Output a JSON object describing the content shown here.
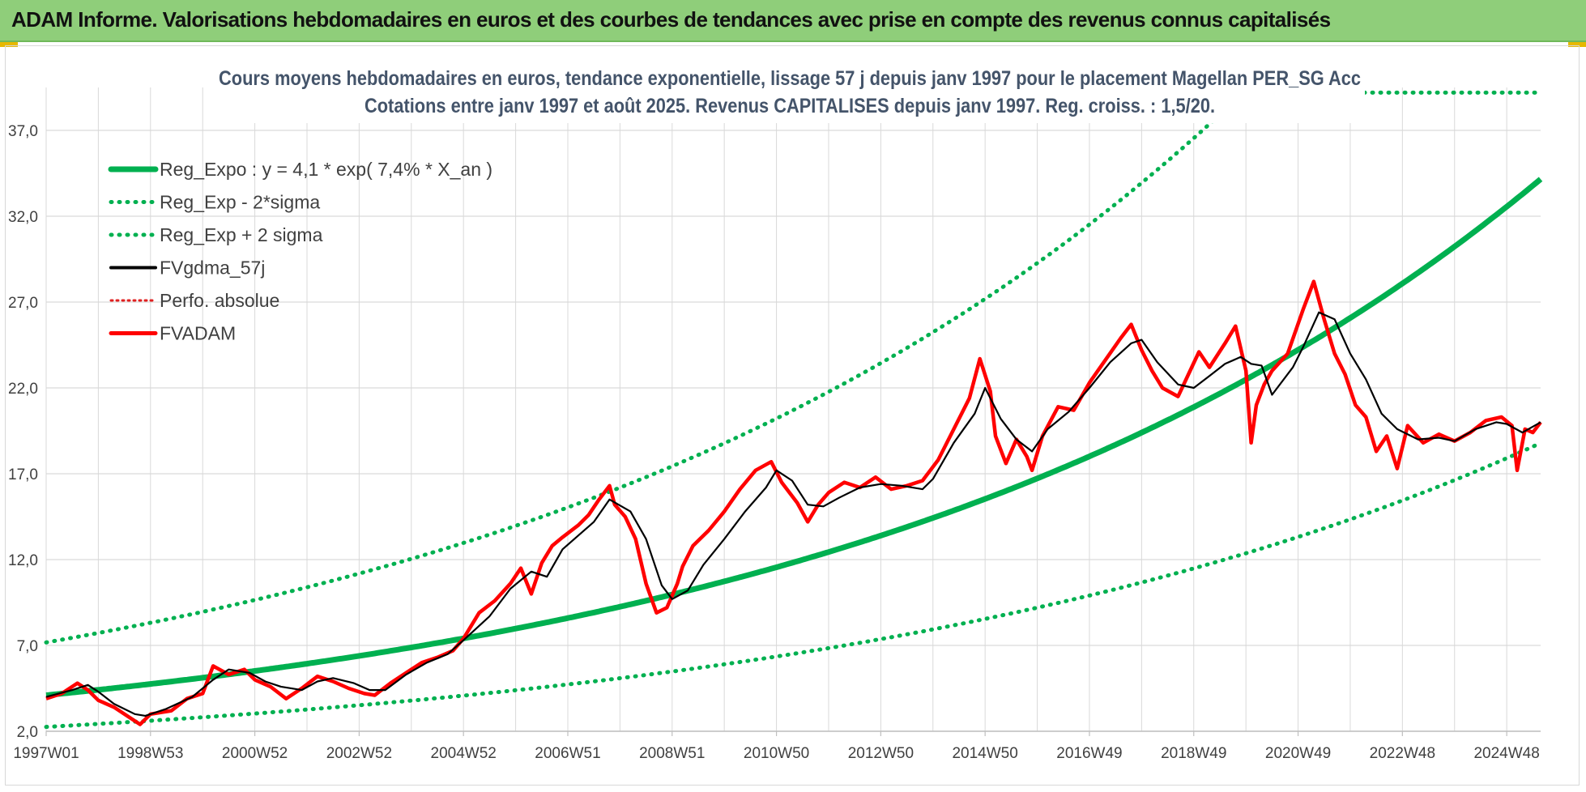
{
  "banner": {
    "title": "ADAM Informe. Valorisations hebdomadaires en euros et des courbes de tendances avec prise en compte des revenus connus capitalisés"
  },
  "colors": {
    "banner_bg": "#8fce7a",
    "regression": "#00b050",
    "fvgdma": "#000000",
    "fvadam": "#ff0000",
    "perfo": "#e02020",
    "grid": "#d9d9d9"
  },
  "chart_data": {
    "type": "line",
    "title": "Cours moyens hebdomadaires en euros, tendance exponentielle, lissage 57 j depuis janv 1997 pour le placement Magellan PER_SG Acc",
    "subtitle": "Cotations entre janv 1997 et août 2025. Revenus CAPITALISES depuis janv 1997. Reg. croiss. : 1,5/20.",
    "xlabel": "",
    "ylabel": "",
    "x_range": [
      1997.0,
      2025.65
    ],
    "ylim": [
      2.0,
      39.5
    ],
    "yticks": [
      "2,0",
      "7,0",
      "12,0",
      "17,0",
      "22,0",
      "27,0",
      "32,0",
      "37,0"
    ],
    "xticks": [
      {
        "label": "1997W01",
        "t": 1997.0
      },
      {
        "label": "1998W53",
        "t": 1999.0
      },
      {
        "label": "2000W52",
        "t": 2001.0
      },
      {
        "label": "2002W52",
        "t": 2003.0
      },
      {
        "label": "2004W52",
        "t": 2005.0
      },
      {
        "label": "2006W51",
        "t": 2007.0
      },
      {
        "label": "2008W51",
        "t": 2009.0
      },
      {
        "label": "2010W50",
        "t": 2011.0
      },
      {
        "label": "2012W50",
        "t": 2013.0
      },
      {
        "label": "2014W50",
        "t": 2015.0
      },
      {
        "label": "2016W49",
        "t": 2017.0
      },
      {
        "label": "2018W49",
        "t": 2019.0
      },
      {
        "label": "2020W49",
        "t": 2021.0
      },
      {
        "label": "2022W48",
        "t": 2023.0
      },
      {
        "label": "2024W48",
        "t": 2025.0
      }
    ],
    "grid": true,
    "legend_position": "top-left",
    "regression": {
      "a": 4.1,
      "rate": 0.074,
      "factor_minus": 0.55,
      "factor_plus": 1.75
    },
    "series": [
      {
        "name": "Reg_Expo : y = 4,1 * exp( 7,4% *  X_an )",
        "style": "solid-thick",
        "color": "#00b050"
      },
      {
        "name": "Reg_Exp - 2*sigma",
        "style": "dotted",
        "color": "#00b050"
      },
      {
        "name": "Reg_Exp + 2 sigma",
        "style": "dotted",
        "color": "#00b050"
      },
      {
        "name": "FVgdma_57j",
        "style": "solid",
        "color": "#000000",
        "t": [
          1997.0,
          1997.5,
          1997.8,
          1998.0,
          1998.3,
          1998.7,
          1998.9,
          1999.3,
          1999.8,
          2000.2,
          2000.5,
          2000.9,
          2001.2,
          2001.5,
          2001.9,
          2002.2,
          2002.5,
          2002.9,
          2003.2,
          2003.5,
          2003.9,
          2004.3,
          2004.7,
          2005.0,
          2005.5,
          2005.9,
          2006.3,
          2006.6,
          2006.9,
          2007.2,
          2007.5,
          2007.8,
          2008.2,
          2008.5,
          2008.8,
          2009.0,
          2009.3,
          2009.6,
          2010.0,
          2010.4,
          2010.8,
          2011.0,
          2011.3,
          2011.6,
          2011.9,
          2012.2,
          2012.6,
          2013.0,
          2013.4,
          2013.8,
          2014.0,
          2014.4,
          2014.8,
          2015.0,
          2015.3,
          2015.6,
          2015.9,
          2016.2,
          2016.6,
          2017.0,
          2017.4,
          2017.8,
          2018.0,
          2018.3,
          2018.7,
          2019.0,
          2019.3,
          2019.6,
          2019.9,
          2020.1,
          2020.3,
          2020.5,
          2020.9,
          2021.1,
          2021.4,
          2021.7,
          2022.0,
          2022.3,
          2022.6,
          2022.9,
          2023.3,
          2023.7,
          2024.0,
          2024.4,
          2024.8,
          2025.0,
          2025.3,
          2025.65
        ],
        "y": [
          4.0,
          4.4,
          4.7,
          4.3,
          3.6,
          3.0,
          2.9,
          3.3,
          4.0,
          5.0,
          5.6,
          5.4,
          4.9,
          4.6,
          4.4,
          4.9,
          5.1,
          4.8,
          4.4,
          4.4,
          5.3,
          6.0,
          6.5,
          7.3,
          8.7,
          10.3,
          11.3,
          11.0,
          12.6,
          13.4,
          14.2,
          15.5,
          14.8,
          13.2,
          10.5,
          9.7,
          10.2,
          11.7,
          13.2,
          14.8,
          16.2,
          17.2,
          16.6,
          15.2,
          15.1,
          15.6,
          16.2,
          16.4,
          16.3,
          16.1,
          16.7,
          18.8,
          20.5,
          22.0,
          20.2,
          19.0,
          18.3,
          19.6,
          20.6,
          22.0,
          23.5,
          24.6,
          24.8,
          23.5,
          22.2,
          22.0,
          22.7,
          23.4,
          23.8,
          23.4,
          23.3,
          21.6,
          23.2,
          24.4,
          26.4,
          26.0,
          24.0,
          22.5,
          20.5,
          19.6,
          19.0,
          19.1,
          18.9,
          19.6,
          20.0,
          19.9,
          19.4,
          20.0
        ]
      },
      {
        "name": "Perfo. absolue",
        "style": "dotted",
        "color": "#e02020"
      },
      {
        "name": "FVADAM",
        "style": "solid-thick",
        "color": "#ff0000",
        "t": [
          1997.0,
          1997.3,
          1997.6,
          1997.8,
          1998.0,
          1998.3,
          1998.6,
          1998.8,
          1999.0,
          1999.4,
          1999.7,
          2000.0,
          2000.2,
          2000.5,
          2000.8,
          2001.0,
          2001.3,
          2001.6,
          2001.9,
          2002.2,
          2002.5,
          2002.8,
          2003.1,
          2003.3,
          2003.6,
          2003.9,
          2004.2,
          2004.5,
          2004.8,
          2005.0,
          2005.3,
          2005.6,
          2005.9,
          2006.1,
          2006.3,
          2006.5,
          2006.7,
          2006.9,
          2007.2,
          2007.4,
          2007.6,
          2007.8,
          2007.9,
          2008.1,
          2008.3,
          2008.5,
          2008.7,
          2008.9,
          2009.1,
          2009.2,
          2009.4,
          2009.7,
          2010.0,
          2010.3,
          2010.6,
          2010.9,
          2011.1,
          2011.4,
          2011.6,
          2011.8,
          2012.0,
          2012.3,
          2012.6,
          2012.9,
          2013.2,
          2013.5,
          2013.8,
          2014.1,
          2014.4,
          2014.7,
          2014.9,
          2015.1,
          2015.2,
          2015.4,
          2015.6,
          2015.8,
          2015.9,
          2016.1,
          2016.4,
          2016.7,
          2017.0,
          2017.3,
          2017.6,
          2017.8,
          2018.0,
          2018.2,
          2018.4,
          2018.7,
          2018.9,
          2019.1,
          2019.3,
          2019.6,
          2019.8,
          2020.0,
          2020.1,
          2020.2,
          2020.35,
          2020.5,
          2020.8,
          2021.1,
          2021.3,
          2021.5,
          2021.7,
          2021.9,
          2022.1,
          2022.3,
          2022.5,
          2022.7,
          2022.9,
          2023.1,
          2023.4,
          2023.7,
          2024.0,
          2024.3,
          2024.6,
          2024.9,
          2025.1,
          2025.2,
          2025.35,
          2025.5,
          2025.65
        ],
        "y": [
          3.9,
          4.2,
          4.8,
          4.4,
          3.8,
          3.4,
          2.8,
          2.4,
          3.0,
          3.2,
          3.9,
          4.2,
          5.8,
          5.3,
          5.6,
          5.0,
          4.6,
          3.9,
          4.5,
          5.2,
          4.9,
          4.5,
          4.2,
          4.1,
          4.8,
          5.4,
          6.0,
          6.3,
          6.7,
          7.4,
          8.9,
          9.6,
          10.6,
          11.5,
          10.0,
          11.8,
          12.8,
          13.3,
          14.0,
          14.6,
          15.5,
          16.3,
          15.2,
          14.5,
          13.2,
          10.6,
          8.9,
          9.2,
          10.6,
          11.6,
          12.8,
          13.7,
          14.8,
          16.1,
          17.2,
          17.7,
          16.5,
          15.3,
          14.2,
          15.2,
          15.9,
          16.5,
          16.2,
          16.8,
          16.1,
          16.3,
          16.6,
          17.8,
          19.6,
          21.4,
          23.7,
          21.8,
          19.2,
          17.6,
          19.0,
          18.0,
          17.2,
          19.2,
          20.9,
          20.7,
          22.3,
          23.6,
          24.9,
          25.7,
          24.2,
          23.0,
          22.0,
          21.5,
          22.8,
          24.1,
          23.2,
          24.6,
          25.6,
          23.0,
          18.8,
          21.0,
          22.2,
          23.0,
          24.0,
          26.6,
          28.2,
          26.0,
          24.0,
          22.8,
          21.0,
          20.3,
          18.3,
          19.2,
          17.3,
          19.8,
          18.8,
          19.3,
          18.9,
          19.4,
          20.1,
          20.3,
          19.8,
          17.2,
          19.6,
          19.4,
          20.0
        ]
      }
    ]
  }
}
